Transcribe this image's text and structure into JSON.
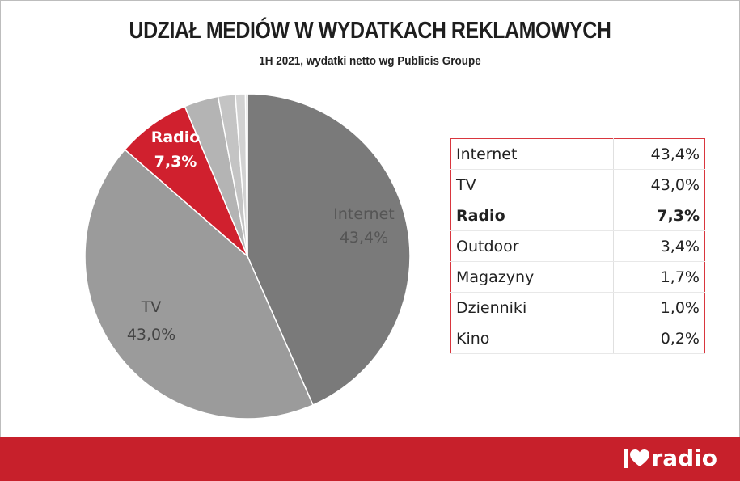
{
  "chart_data": {
    "type": "pie",
    "title": "UDZIAŁ MEDIÓW W WYDATKACH REKLAMOWYCH",
    "subtitle": "1H 2021, wydatki netto wg Publicis Groupe",
    "slices": [
      {
        "label": "Internet",
        "value": 43.4,
        "value_label": "43,4%",
        "color": "#7a7a7a",
        "label_color": "#555555"
      },
      {
        "label": "TV",
        "value": 43.0,
        "value_label": "43,0%",
        "color": "#9b9b9b",
        "label_color": "#444444"
      },
      {
        "label": "Radio",
        "value": 7.3,
        "value_label": "7,3%",
        "color": "#d0202e",
        "label_color": "#ffffff"
      },
      {
        "label": "Outdoor",
        "value": 3.4,
        "value_label": "3,4%",
        "color": "#b4b4b4"
      },
      {
        "label": "Magazyny",
        "value": 1.7,
        "value_label": "1,7%",
        "color": "#c4c4c4"
      },
      {
        "label": "Dzienniki",
        "value": 1.0,
        "value_label": "1,0%",
        "color": "#d2d2d2"
      },
      {
        "label": "Kino",
        "value": 0.2,
        "value_label": "0,2%",
        "color": "#e0e0e0"
      }
    ]
  },
  "table": {
    "rows": [
      {
        "name": "Internet",
        "value": "43,4%"
      },
      {
        "name": "TV",
        "value": "43,0%"
      },
      {
        "name": "Radio",
        "value": "7,3%"
      },
      {
        "name": "Outdoor",
        "value": "3,4%"
      },
      {
        "name": "Magazyny",
        "value": "1,7%"
      },
      {
        "name": "Dzienniki",
        "value": "1,0%"
      },
      {
        "name": "Kino",
        "value": "0,2%"
      }
    ],
    "highlight": "Radio"
  },
  "footer": {
    "logo_text": "radio",
    "logo_icon": "heart-icon",
    "color": "#c7202b"
  }
}
